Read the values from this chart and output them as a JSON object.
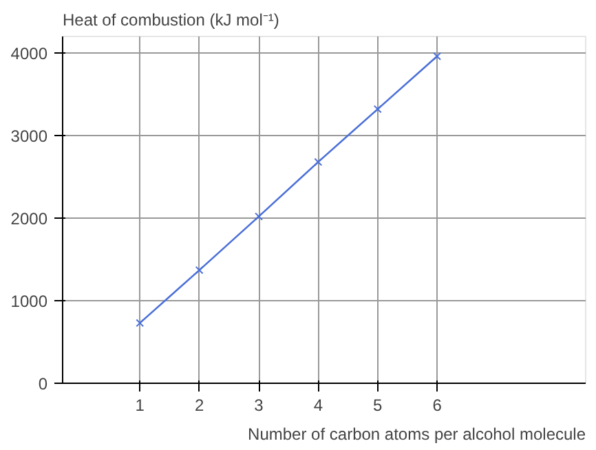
{
  "chart_data": {
    "type": "line",
    "ylabel": "Heat of combustion (kJ mol⁻¹)",
    "xlabel": "Number of carbon atoms per alcohol molecule",
    "x": [
      1,
      2,
      3,
      4,
      5,
      6
    ],
    "series": [
      {
        "color": "#4a6fd8",
        "values": [
          730,
          1370,
          2020,
          2680,
          3320,
          3960
        ]
      }
    ],
    "xlim": [
      -0.3,
      8.5
    ],
    "ylim": [
      0,
      4200
    ],
    "xticks": [
      1,
      2,
      3,
      4,
      5,
      6
    ],
    "yticks": [
      0,
      1000,
      2000,
      3000,
      4000
    ],
    "grid": true,
    "marker": "cross",
    "line_style": "solid"
  }
}
